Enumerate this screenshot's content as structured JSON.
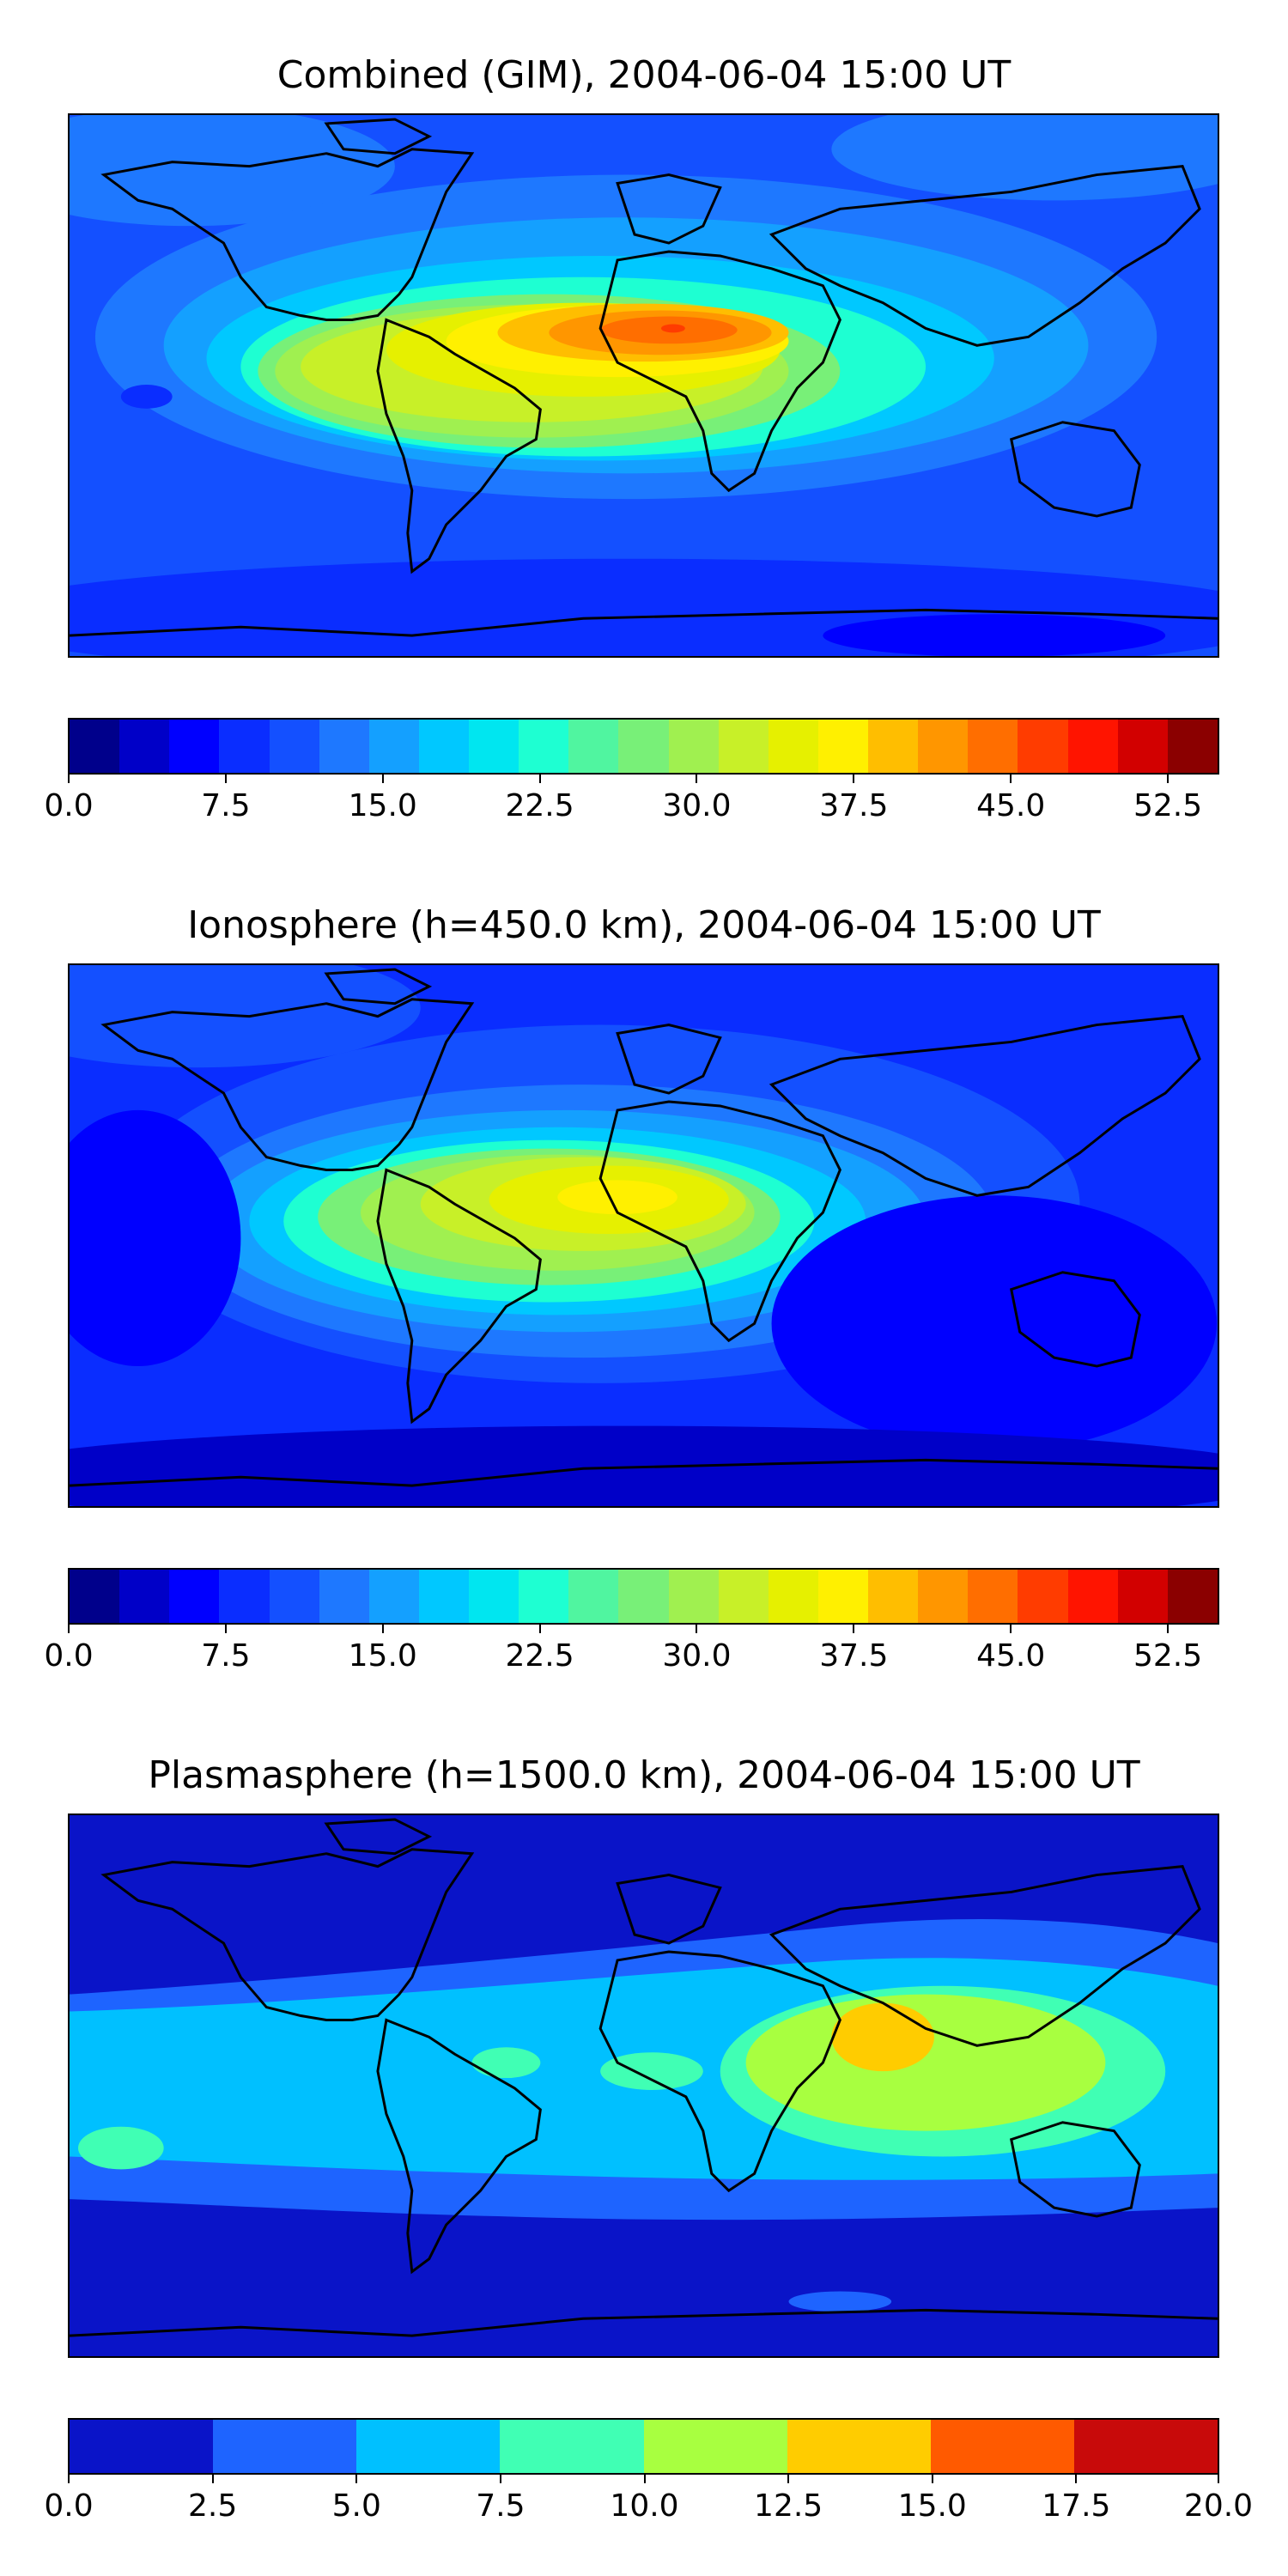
{
  "panels": [
    {
      "title": "Combined (GIM), 2004-06-04 15:00 UT",
      "colorbar": {
        "min": 0.0,
        "max": 55.0,
        "colors": [
          "#00008b",
          "#0000c8",
          "#0000ff",
          "#0a2dff",
          "#1450ff",
          "#1e78ff",
          "#14a0ff",
          "#00c8ff",
          "#00e6f0",
          "#1effd2",
          "#50f5a0",
          "#78f078",
          "#a0f050",
          "#c8f028",
          "#e6f000",
          "#fff000",
          "#ffbe00",
          "#ff9600",
          "#ff6e00",
          "#ff3c00",
          "#ff1400",
          "#d20000",
          "#8b0000"
        ],
        "ticks": [
          "0.0",
          "7.5",
          "15.0",
          "22.5",
          "30.0",
          "37.5",
          "45.0",
          "52.5"
        ],
        "tick_values": [
          0.0,
          7.5,
          15.0,
          22.5,
          30.0,
          37.5,
          45.0,
          52.5
        ]
      }
    },
    {
      "title": "Ionosphere  (h=450.0 km), 2004-06-04 15:00 UT",
      "colorbar": {
        "min": 0.0,
        "max": 55.0,
        "colors": [
          "#00008b",
          "#0000c8",
          "#0000ff",
          "#0a2dff",
          "#1450ff",
          "#1e78ff",
          "#14a0ff",
          "#00c8ff",
          "#00e6f0",
          "#1effd2",
          "#50f5a0",
          "#78f078",
          "#a0f050",
          "#c8f028",
          "#e6f000",
          "#fff000",
          "#ffbe00",
          "#ff9600",
          "#ff6e00",
          "#ff3c00",
          "#ff1400",
          "#d20000",
          "#8b0000"
        ],
        "ticks": [
          "0.0",
          "7.5",
          "15.0",
          "22.5",
          "30.0",
          "37.5",
          "45.0",
          "52.5"
        ],
        "tick_values": [
          0.0,
          7.5,
          15.0,
          22.5,
          30.0,
          37.5,
          45.0,
          52.5
        ]
      }
    },
    {
      "title": "Plasmasphere (h=1500.0 km), 2004-06-04 15:00 UT",
      "colorbar": {
        "min": 0.0,
        "max": 20.0,
        "colors": [
          "#0a14c8",
          "#1e64ff",
          "#00c0ff",
          "#40ffb4",
          "#a8ff40",
          "#ffcc00",
          "#ff5a00",
          "#c80a0a"
        ],
        "ticks": [
          "0.0",
          "2.5",
          "5.0",
          "7.5",
          "10.0",
          "12.5",
          "15.0",
          "17.5",
          "20.0"
        ],
        "tick_values": [
          0.0,
          2.5,
          5.0,
          7.5,
          10.0,
          12.5,
          15.0,
          17.5,
          20.0
        ]
      }
    }
  ]
}
